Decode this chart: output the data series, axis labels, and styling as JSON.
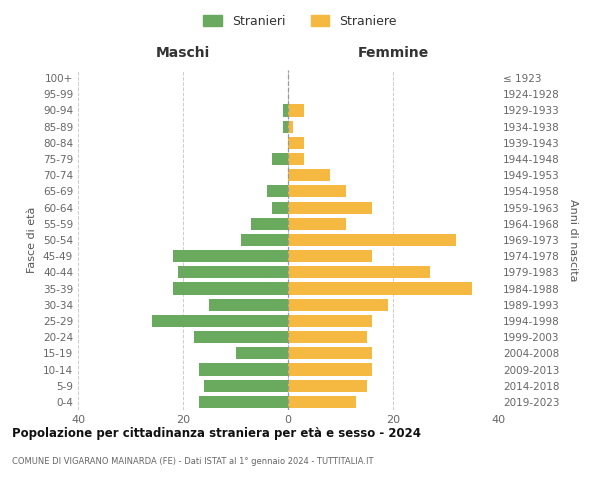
{
  "age_groups": [
    "0-4",
    "5-9",
    "10-14",
    "15-19",
    "20-24",
    "25-29",
    "30-34",
    "35-39",
    "40-44",
    "45-49",
    "50-54",
    "55-59",
    "60-64",
    "65-69",
    "70-74",
    "75-79",
    "80-84",
    "85-89",
    "90-94",
    "95-99",
    "100+"
  ],
  "birth_years": [
    "2019-2023",
    "2014-2018",
    "2009-2013",
    "2004-2008",
    "1999-2003",
    "1994-1998",
    "1989-1993",
    "1984-1988",
    "1979-1983",
    "1974-1978",
    "1969-1973",
    "1964-1968",
    "1959-1963",
    "1954-1958",
    "1949-1953",
    "1944-1948",
    "1939-1943",
    "1934-1938",
    "1929-1933",
    "1924-1928",
    "≤ 1923"
  ],
  "maschi": [
    17,
    16,
    17,
    10,
    18,
    26,
    15,
    22,
    21,
    22,
    9,
    7,
    3,
    4,
    0,
    3,
    0,
    1,
    1,
    0,
    0
  ],
  "femmine": [
    13,
    15,
    16,
    16,
    15,
    16,
    19,
    35,
    27,
    16,
    32,
    11,
    16,
    11,
    8,
    3,
    3,
    1,
    3,
    0,
    0
  ],
  "color_maschi": "#6aaa5e",
  "color_femmine": "#f5b942",
  "title_main": "Popolazione per cittadinanza straniera per età e sesso - 2024",
  "title_sub": "COMUNE DI VIGARANO MAINARDA (FE) - Dati ISTAT al 1° gennaio 2024 - TUTTITALIA.IT",
  "label_maschi": "Stranieri",
  "label_femmine": "Straniere",
  "label_left": "Maschi",
  "label_right": "Femmine",
  "ylabel_left": "Fasce di età",
  "ylabel_right": "Anni di nascita",
  "xlim": 40,
  "background_color": "#ffffff",
  "grid_color": "#cccccc"
}
